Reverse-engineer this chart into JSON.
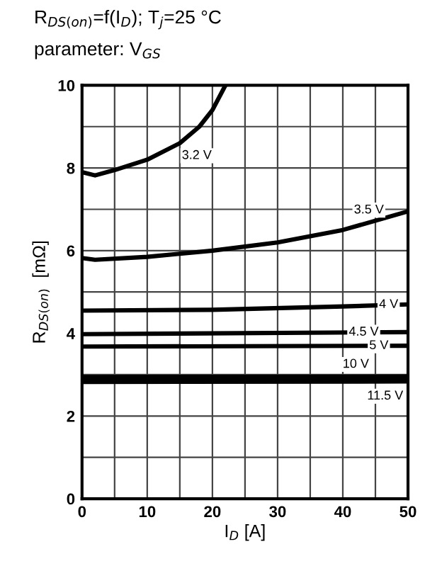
{
  "chart_data": {
    "type": "line",
    "title": "R$_{DS(on)}$=f(I$_{D}$); T$_{j}$=25 °C",
    "subtitle": "parameter: V$_{GS}$",
    "xlabel": "I$_{D}$ [A]",
    "ylabel": "R$_{DS(on)}$  [mΩ]",
    "xlim": [
      0,
      50
    ],
    "ylim": [
      0,
      10
    ],
    "xticks": [
      0,
      {
        "value": 5,
        "label": null
      },
      10,
      {
        "value": 15,
        "label": null
      },
      20,
      {
        "value": 25,
        "label": null
      },
      30,
      {
        "value": 35,
        "label": null
      },
      40,
      {
        "value": 45,
        "label": null
      },
      50
    ],
    "yticks": [
      0,
      {
        "value": 1,
        "label": null
      },
      2,
      {
        "value": 3,
        "label": null
      },
      4,
      {
        "value": 5,
        "label": null
      },
      6,
      {
        "value": 7,
        "label": null
      },
      8,
      {
        "value": 9,
        "label": null
      },
      10
    ],
    "grid": true,
    "legend": false,
    "marker": "none",
    "line_style": "solid",
    "series": [
      {
        "name": "3.2 V",
        "color": "#000000",
        "x": [
          0,
          2,
          5,
          10,
          15,
          18,
          20,
          22
        ],
        "values": [
          7.9,
          7.82,
          7.95,
          8.2,
          8.6,
          9.0,
          9.4,
          10.0
        ]
      },
      {
        "name": "3.5 V",
        "color": "#000000",
        "x": [
          0,
          2,
          10,
          20,
          30,
          40,
          50
        ],
        "values": [
          5.82,
          5.78,
          5.85,
          6.0,
          6.2,
          6.5,
          6.95
        ]
      },
      {
        "name": "4 V",
        "color": "#000000",
        "x": [
          0,
          20,
          40,
          50
        ],
        "values": [
          4.55,
          4.57,
          4.65,
          4.7
        ]
      },
      {
        "name": "4.5 V",
        "color": "#000000",
        "x": [
          0,
          50
        ],
        "values": [
          3.98,
          4.03
        ]
      },
      {
        "name": "5 V",
        "color": "#000000",
        "x": [
          0,
          50
        ],
        "values": [
          3.68,
          3.7
        ]
      },
      {
        "name": "10 V",
        "color": "#000000",
        "x": [
          0,
          50
        ],
        "values": [
          2.92,
          2.93
        ]
      },
      {
        "name": "11.5 V",
        "color": "#000000",
        "x": [
          0,
          50
        ],
        "values": [
          2.85,
          2.86
        ]
      }
    ]
  }
}
